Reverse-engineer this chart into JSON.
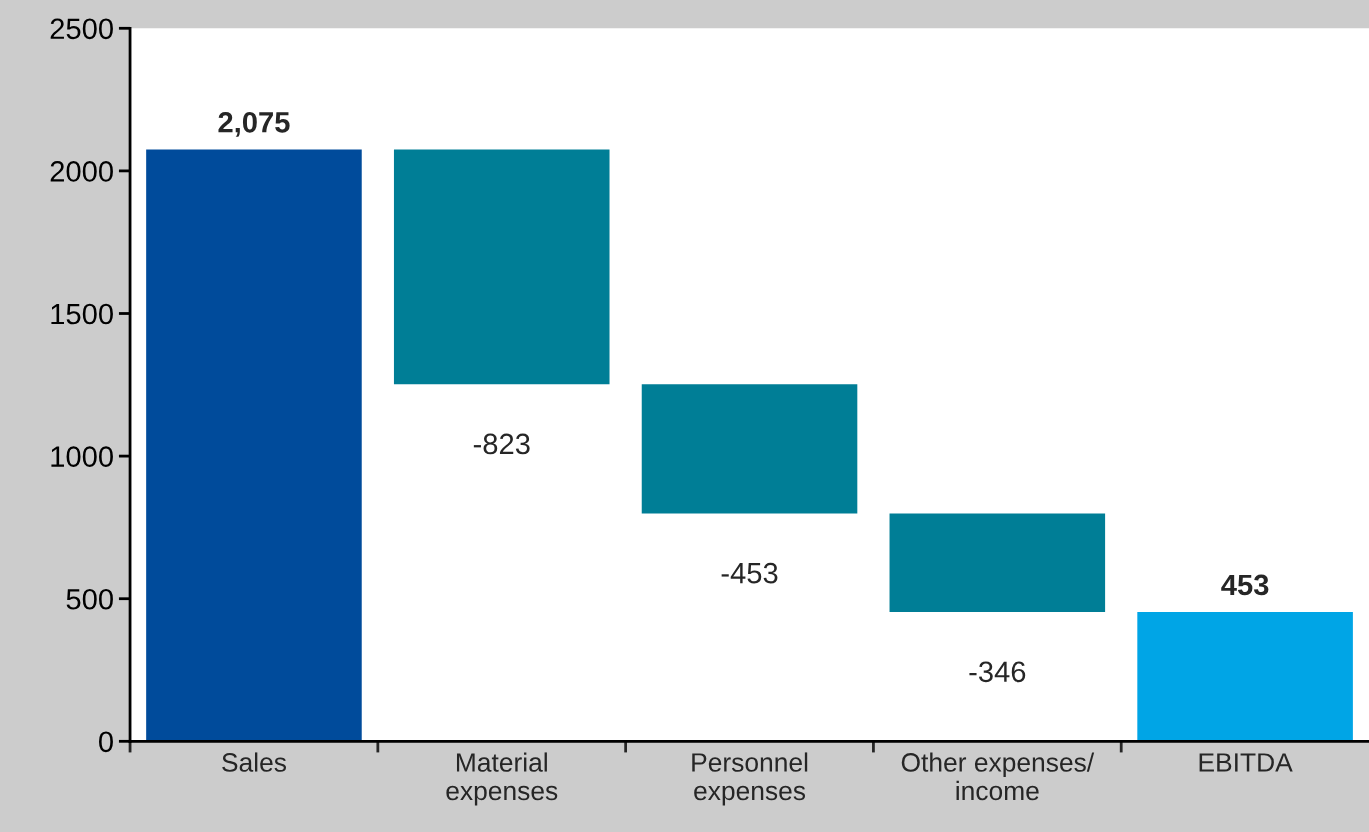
{
  "chart_data": {
    "type": "bar",
    "categories": [
      "Sales",
      "Material\nexpenses",
      "Personnel\nexpenses",
      "Other expenses/\nincome",
      "EBITDA"
    ],
    "values": [
      2075,
      -823,
      -453,
      -346,
      453
    ],
    "base": [
      0,
      2075,
      1252,
      799,
      0
    ],
    "colors": [
      "#004b9b",
      "#007e96",
      "#007e96",
      "#007e96",
      "#00a5e6"
    ],
    "value_labels": [
      "2,075",
      "-823",
      "-453",
      "-346",
      "453"
    ],
    "ylim": [
      0,
      2500
    ],
    "yticks": [
      0,
      500,
      1000,
      1500,
      2000,
      2500
    ],
    "grid": false,
    "legend": false
  }
}
